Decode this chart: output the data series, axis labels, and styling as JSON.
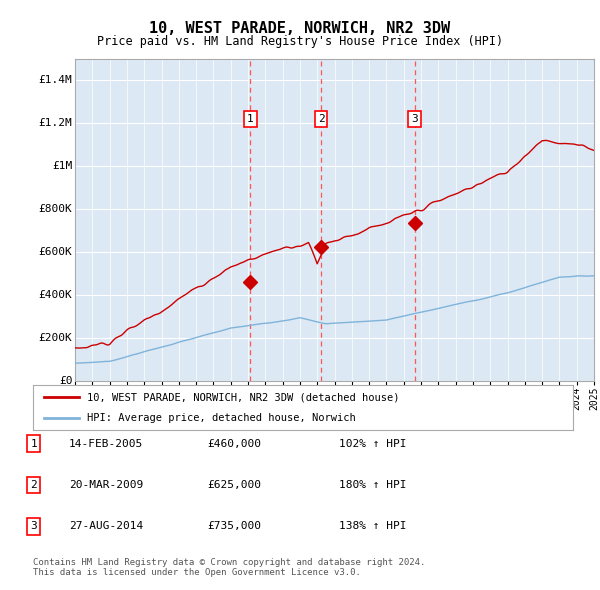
{
  "title": "10, WEST PARADE, NORWICH, NR2 3DW",
  "subtitle": "Price paid vs. HM Land Registry's House Price Index (HPI)",
  "ylim": [
    0,
    1500000
  ],
  "yticks": [
    0,
    200000,
    400000,
    600000,
    800000,
    1000000,
    1200000,
    1400000
  ],
  "ytick_labels": [
    "£0",
    "£200K",
    "£400K",
    "£600K",
    "£800K",
    "£1M",
    "£1.2M",
    "£1.4M"
  ],
  "plot_bg": "#dce9f5",
  "grid_color": "#ffffff",
  "sale_color": "#cc0000",
  "hpi_color": "#7fb3d9",
  "vline_color": "#ff5555",
  "sale_points": [
    {
      "year": 2005.12,
      "price": 460000,
      "label": "1"
    },
    {
      "year": 2009.22,
      "price": 625000,
      "label": "2"
    },
    {
      "year": 2014.65,
      "price": 735000,
      "label": "3"
    }
  ],
  "legend_sale": "10, WEST PARADE, NORWICH, NR2 3DW (detached house)",
  "legend_hpi": "HPI: Average price, detached house, Norwich",
  "table_rows": [
    {
      "num": "1",
      "date": "14-FEB-2005",
      "price": "£460,000",
      "pct": "102% ↑ HPI"
    },
    {
      "num": "2",
      "date": "20-MAR-2009",
      "price": "£625,000",
      "pct": "180% ↑ HPI"
    },
    {
      "num": "3",
      "date": "27-AUG-2014",
      "price": "£735,000",
      "pct": "138% ↑ HPI"
    }
  ],
  "footer": "Contains HM Land Registry data © Crown copyright and database right 2024.\nThis data is licensed under the Open Government Licence v3.0.",
  "xmin": 1995,
  "xmax": 2025
}
